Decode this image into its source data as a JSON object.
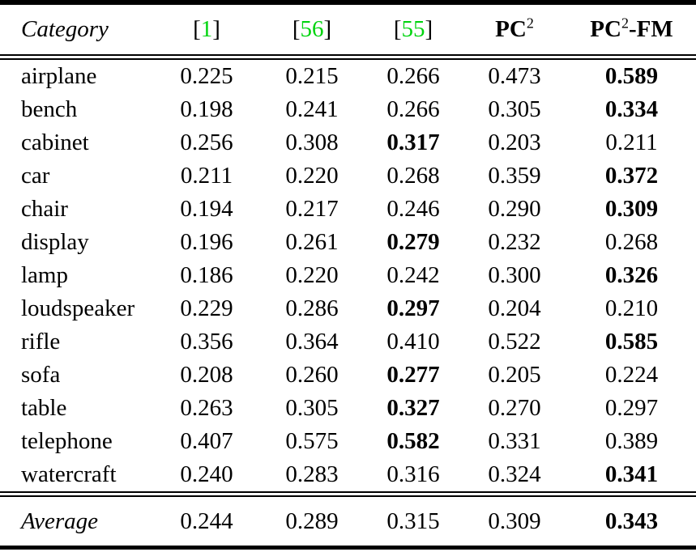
{
  "table": {
    "colors": {
      "citation_green": "#00d40e",
      "rule_black": "#000000"
    },
    "header": {
      "category": "Category",
      "citations": [
        {
          "open": "[",
          "num": "1",
          "close": "]"
        },
        {
          "open": "[",
          "num": "56",
          "close": "]"
        },
        {
          "open": "[",
          "num": "55",
          "close": "]"
        }
      ],
      "methods": [
        {
          "base": "PC",
          "sup": "2",
          "suffix": ""
        },
        {
          "base": "PC",
          "sup": "2",
          "suffix": "-FM"
        }
      ]
    },
    "rows": [
      {
        "category": "airplane",
        "values": [
          "0.225",
          "0.215",
          "0.266",
          "0.473",
          "0.589"
        ],
        "bold_index": 4
      },
      {
        "category": "bench",
        "values": [
          "0.198",
          "0.241",
          "0.266",
          "0.305",
          "0.334"
        ],
        "bold_index": 4
      },
      {
        "category": "cabinet",
        "values": [
          "0.256",
          "0.308",
          "0.317",
          "0.203",
          "0.211"
        ],
        "bold_index": 2
      },
      {
        "category": "car",
        "values": [
          "0.211",
          "0.220",
          "0.268",
          "0.359",
          "0.372"
        ],
        "bold_index": 4
      },
      {
        "category": "chair",
        "values": [
          "0.194",
          "0.217",
          "0.246",
          "0.290",
          "0.309"
        ],
        "bold_index": 4
      },
      {
        "category": "display",
        "values": [
          "0.196",
          "0.261",
          "0.279",
          "0.232",
          "0.268"
        ],
        "bold_index": 2
      },
      {
        "category": "lamp",
        "values": [
          "0.186",
          "0.220",
          "0.242",
          "0.300",
          "0.326"
        ],
        "bold_index": 4
      },
      {
        "category": "loudspeaker",
        "values": [
          "0.229",
          "0.286",
          "0.297",
          "0.204",
          "0.210"
        ],
        "bold_index": 2
      },
      {
        "category": "rifle",
        "values": [
          "0.356",
          "0.364",
          "0.410",
          "0.522",
          "0.585"
        ],
        "bold_index": 4
      },
      {
        "category": "sofa",
        "values": [
          "0.208",
          "0.260",
          "0.277",
          "0.205",
          "0.224"
        ],
        "bold_index": 2
      },
      {
        "category": "table",
        "values": [
          "0.263",
          "0.305",
          "0.327",
          "0.270",
          "0.297"
        ],
        "bold_index": 2
      },
      {
        "category": "telephone",
        "values": [
          "0.407",
          "0.575",
          "0.582",
          "0.331",
          "0.389"
        ],
        "bold_index": 2
      },
      {
        "category": "watercraft",
        "values": [
          "0.240",
          "0.283",
          "0.316",
          "0.324",
          "0.341"
        ],
        "bold_index": 4
      }
    ],
    "average": {
      "category": "Average",
      "values": [
        "0.244",
        "0.289",
        "0.315",
        "0.309",
        "0.343"
      ],
      "bold_index": 4
    }
  }
}
